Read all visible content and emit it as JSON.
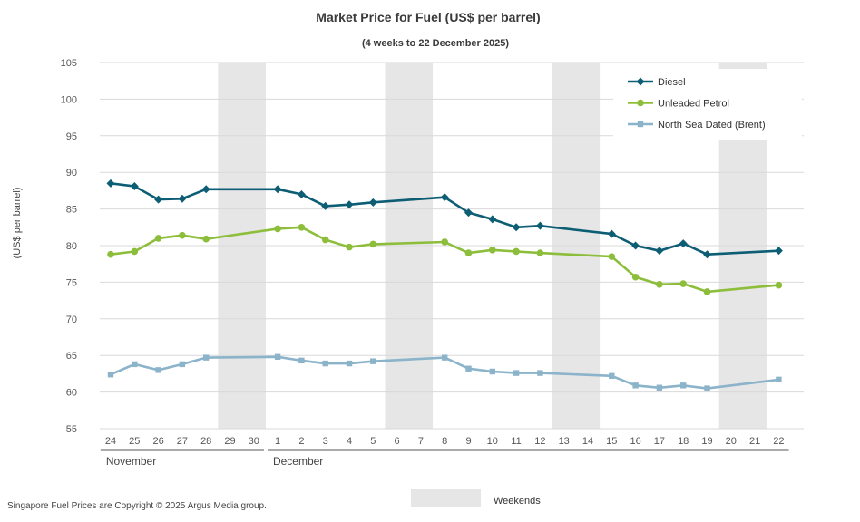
{
  "chart_data": {
    "type": "line",
    "title": "Market Price for Fuel (US$ per barrel)",
    "subtitle": "(4 weeks to 22 December 2025)",
    "ylabel": "(US$ per barrel)",
    "ylim": [
      55,
      105
    ],
    "yticks": [
      55,
      60,
      65,
      70,
      75,
      80,
      85,
      90,
      95,
      100,
      105
    ],
    "categories": [
      "24",
      "25",
      "26",
      "27",
      "28",
      "29",
      "30",
      "1",
      "2",
      "3",
      "4",
      "5",
      "6",
      "7",
      "8",
      "9",
      "10",
      "11",
      "12",
      "13",
      "14",
      "15",
      "16",
      "17",
      "18",
      "19",
      "20",
      "21",
      "22"
    ],
    "months": [
      {
        "label": "November",
        "start": "24",
        "end": "30"
      },
      {
        "label": "December",
        "start": "1",
        "end": "22"
      }
    ],
    "weekends": [
      [
        "29",
        "30"
      ],
      [
        "6",
        "7"
      ],
      [
        "13",
        "14"
      ],
      [
        "20",
        "21"
      ]
    ],
    "series": [
      {
        "name": "Diesel",
        "color": "#0d5e74",
        "marker": "diamond",
        "values": [
          88.5,
          88.1,
          86.3,
          86.4,
          87.7,
          null,
          null,
          87.7,
          87.0,
          85.4,
          85.6,
          85.9,
          null,
          null,
          86.6,
          84.5,
          83.6,
          82.5,
          82.7,
          null,
          null,
          81.6,
          80.0,
          79.3,
          80.3,
          78.8,
          null,
          null,
          79.3
        ]
      },
      {
        "name": "Unleaded Petrol",
        "color": "#8dbe3b",
        "marker": "circle",
        "values": [
          78.8,
          79.2,
          81.0,
          81.4,
          80.9,
          null,
          null,
          82.3,
          82.5,
          80.8,
          79.8,
          80.2,
          null,
          null,
          80.5,
          79.0,
          79.4,
          79.2,
          79.0,
          null,
          null,
          78.5,
          75.7,
          74.7,
          74.8,
          73.7,
          null,
          null,
          74.6
        ]
      },
      {
        "name": "North Sea Dated (Brent)",
        "color": "#8bb3c9",
        "marker": "square",
        "values": [
          62.4,
          63.8,
          63.0,
          63.8,
          64.7,
          null,
          null,
          64.8,
          64.3,
          63.9,
          63.9,
          64.2,
          null,
          null,
          64.7,
          63.2,
          62.8,
          62.6,
          62.6,
          null,
          null,
          62.2,
          60.9,
          60.6,
          60.9,
          60.5,
          null,
          null,
          61.7
        ]
      }
    ],
    "legend_position": "top-right",
    "weekend_legend": "Weekends",
    "footer": "Singapore Fuel Prices are Copyright © 2025 Argus Media group."
  }
}
